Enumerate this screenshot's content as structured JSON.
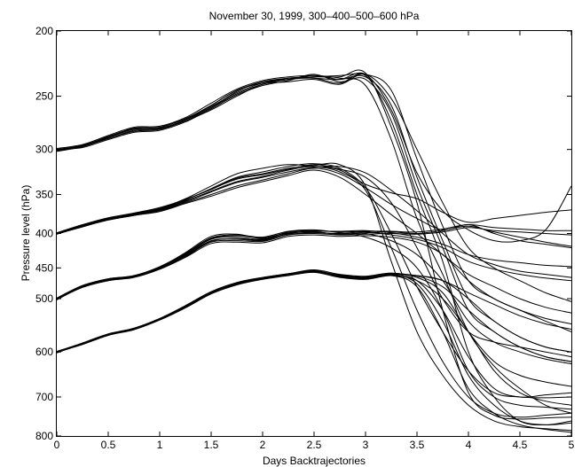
{
  "chart_data": {
    "type": "line",
    "title": "November 30, 1999, 300–400–500–600 hPa",
    "xlabel": "Days Backtrajectories",
    "ylabel": "Pressure level (hPa)",
    "xlim": [
      0,
      5
    ],
    "ylim": [
      200,
      800
    ],
    "y_scale": "log",
    "y_reversed": true,
    "grid": false,
    "x_ticks": [
      0,
      0.5,
      1,
      1.5,
      2,
      2.5,
      3,
      3.5,
      4,
      4.5,
      5
    ],
    "x_tick_labels": [
      "0",
      "0.5",
      "1",
      "1.5",
      "2",
      "2.5",
      "3",
      "3.5",
      "4",
      "4.5",
      "5"
    ],
    "y_ticks": [
      200,
      250,
      300,
      350,
      400,
      450,
      500,
      600,
      700,
      800
    ],
    "y_tick_labels": [
      "200",
      "250",
      "300",
      "350",
      "400",
      "450",
      "500",
      "600",
      "700",
      "800"
    ],
    "x": [
      0,
      0.25,
      0.5,
      0.75,
      1,
      1.25,
      1.5,
      1.75,
      2,
      2.25,
      2.5,
      2.75,
      3,
      3.25,
      3.5,
      3.75,
      4,
      4.25,
      4.5,
      4.75,
      5
    ],
    "groups": [
      {
        "start": 300,
        "series": [
          {
            "values": [
              300,
              296,
              287,
              279,
              278,
              270,
              258,
              245,
              238,
              235,
              235,
              236,
              232,
              262,
              325,
              370,
              395,
              410,
              410,
              395,
              340
            ]
          },
          {
            "values": [
              300,
              297,
              289,
              282,
              280,
              271,
              260,
              248,
              240,
              236,
              234,
              234,
              231,
              278,
              360,
              520,
              690,
              745,
              755,
              752,
              750
            ]
          },
          {
            "values": [
              301,
              296,
              288,
              280,
              279,
              272,
              262,
              250,
              240,
              238,
              236,
              240,
              232,
              252,
              300,
              360,
              420,
              450,
              470,
              490,
              505
            ]
          },
          {
            "values": [
              299,
              295,
              286,
              278,
              277,
              269,
              256,
              244,
              237,
              234,
              233,
              235,
              241,
              290,
              380,
              460,
              560,
              630,
              680,
              720,
              740
            ]
          },
          {
            "values": [
              300,
              298,
              290,
              283,
              281,
              273,
              261,
              249,
              241,
              237,
              232,
              238,
              236,
              265,
              340,
              420,
              520,
              560,
              590,
              610,
              620
            ]
          },
          {
            "values": [
              302,
              297,
              287,
              280,
              278,
              270,
              259,
              247,
              239,
              235,
              234,
              233,
              232,
              245,
              310,
              390,
              470,
              500,
              520,
              540,
              560
            ]
          },
          {
            "values": [
              300,
              296,
              289,
              281,
              280,
              272,
              260,
              246,
              238,
              236,
              235,
              239,
              233,
              272,
              350,
              440,
              600,
              700,
              760,
              770,
              760
            ]
          },
          {
            "values": [
              301,
              297,
              288,
              279,
              279,
              271,
              258,
              245,
              239,
              236,
              233,
              236,
              234,
              258,
              330,
              410,
              500,
              540,
              570,
              590,
              600
            ]
          }
        ]
      },
      {
        "start": 400,
        "series": [
          {
            "values": [
              400,
              389,
              380,
              374,
              368,
              358,
              346,
              335,
              329,
              322,
              318,
              322,
              338,
              348,
              355,
              372,
              385,
              380,
              376,
              372,
              369
            ]
          },
          {
            "values": [
              401,
              391,
              382,
              376,
              370,
              360,
              350,
              340,
              333,
              326,
              320,
              326,
              342,
              362,
              380,
              395,
              388,
              400,
              410,
              415,
              420
            ]
          },
          {
            "values": [
              400,
              390,
              381,
              375,
              369,
              357,
              343,
              330,
              324,
              318,
              315,
              320,
              342,
              400,
              480,
              560,
              640,
              690,
              700,
              702,
              700
            ]
          },
          {
            "values": [
              399,
              388,
              379,
              373,
              367,
              355,
              340,
              326,
              320,
              316,
              318,
              324,
              345,
              420,
              520,
              620,
              700,
              740,
              750,
              745,
              740
            ]
          },
          {
            "values": [
              400,
              390,
              382,
              376,
              371,
              361,
              352,
              342,
              335,
              328,
              322,
              330,
              350,
              375,
              400,
              430,
              460,
              480,
              500,
              515,
              525
            ]
          },
          {
            "values": [
              401,
              389,
              380,
              374,
              369,
              359,
              347,
              336,
              330,
              324,
              319,
              318,
              325,
              345,
              370,
              400,
              430,
              445,
              455,
              460,
              465
            ]
          },
          {
            "values": [
              400,
              391,
              381,
              375,
              368,
              356,
              344,
              332,
              327,
              321,
              316,
              321,
              330,
              360,
              420,
              500,
              560,
              580,
              590,
              600,
              610
            ]
          },
          {
            "values": [
              399,
              390,
              380,
              373,
              366,
              356,
              344,
              331,
              326,
              320,
              317,
              316,
              340,
              440,
              560,
              650,
              720,
              760,
              775,
              780,
              785
            ]
          }
        ]
      },
      {
        "start": 500,
        "series": [
          {
            "values": [
              500,
              479,
              468,
              463,
              450,
              430,
              408,
              405,
              408,
              398,
              396,
              398,
              397,
              397,
              398,
              394,
              388,
              392,
              394,
              396,
              396
            ]
          },
          {
            "values": [
              501,
              481,
              470,
              465,
              452,
              433,
              412,
              410,
              411,
              402,
              400,
              402,
              401,
              400,
              401,
              398,
              392,
              396,
              398,
              400,
              402
            ]
          },
          {
            "values": [
              499,
              478,
              467,
              462,
              448,
              428,
              406,
              402,
              405,
              397,
              395,
              399,
              405,
              420,
              450,
              520,
              640,
              700,
              720,
              725,
              730
            ]
          },
          {
            "values": [
              500,
              480,
              469,
              464,
              451,
              431,
              410,
              408,
              410,
              400,
              398,
              401,
              399,
              398,
              400,
              396,
              390,
              398,
              405,
              412,
              418
            ]
          },
          {
            "values": [
              502,
              480,
              468,
              462,
              449,
              427,
              404,
              401,
              407,
              401,
              399,
              400,
              398,
              402,
              408,
              420,
              440,
              452,
              460,
              466,
              470
            ]
          },
          {
            "values": [
              500,
              479,
              467,
              463,
              452,
              434,
              414,
              412,
              413,
              404,
              402,
              404,
              403,
              405,
              412,
              430,
              470,
              500,
              520,
              535,
              545
            ]
          },
          {
            "values": [
              501,
              481,
              470,
              464,
              450,
              429,
              407,
              403,
              406,
              399,
              397,
              397,
              396,
              399,
              405,
              415,
              430,
              438,
              442,
              446,
              448
            ]
          },
          {
            "values": [
              499,
              478,
              468,
              463,
              451,
              432,
              411,
              407,
              409,
              400,
              398,
              401,
              400,
              410,
              430,
              470,
              540,
              580,
              600,
              615,
              625
            ]
          }
        ]
      },
      {
        "start": 600,
        "series": [
          {
            "values": [
              600,
              583,
              565,
              554,
              536,
              513,
              489,
              474,
              466,
              460,
              455,
              462,
              465,
              460,
              470,
              520,
              610,
              680,
              700,
              695,
              690
            ]
          },
          {
            "values": [
              601,
              585,
              567,
              556,
              538,
              516,
              492,
              477,
              468,
              462,
              457,
              465,
              468,
              462,
              470,
              500,
              560,
              640,
              690,
              710,
              720
            ]
          },
          {
            "values": [
              599,
              582,
              564,
              553,
              535,
              512,
              488,
              473,
              465,
              459,
              453,
              460,
              463,
              458,
              465,
              490,
              560,
              620,
              650,
              665,
              675
            ]
          },
          {
            "values": [
              600,
              584,
              566,
              555,
              537,
              514,
              490,
              475,
              467,
              461,
              456,
              463,
              466,
              461,
              475,
              540,
              650,
              720,
              760,
              770,
              765
            ]
          },
          {
            "values": [
              602,
              583,
              565,
              554,
              536,
              513,
              490,
              474,
              466,
              461,
              456,
              461,
              464,
              459,
              462,
              470,
              490,
              510,
              530,
              545,
              555
            ]
          },
          {
            "values": [
              600,
              584,
              566,
              555,
              537,
              515,
              491,
              476,
              467,
              460,
              454,
              462,
              466,
              460,
              463,
              480,
              520,
              560,
              590,
              610,
              620
            ]
          },
          {
            "values": [
              601,
              582,
              564,
              554,
              536,
              512,
              489,
              474,
              466,
              460,
              455,
              464,
              467,
              462,
              480,
              560,
              680,
              740,
              770,
              782,
              790
            ]
          },
          {
            "values": [
              599,
              583,
              565,
              553,
              535,
              513,
              489,
              473,
              465,
              459,
              455,
              463,
              466,
              459,
              462,
              470,
              500,
              540,
              570,
              590,
              600
            ]
          }
        ]
      }
    ]
  }
}
